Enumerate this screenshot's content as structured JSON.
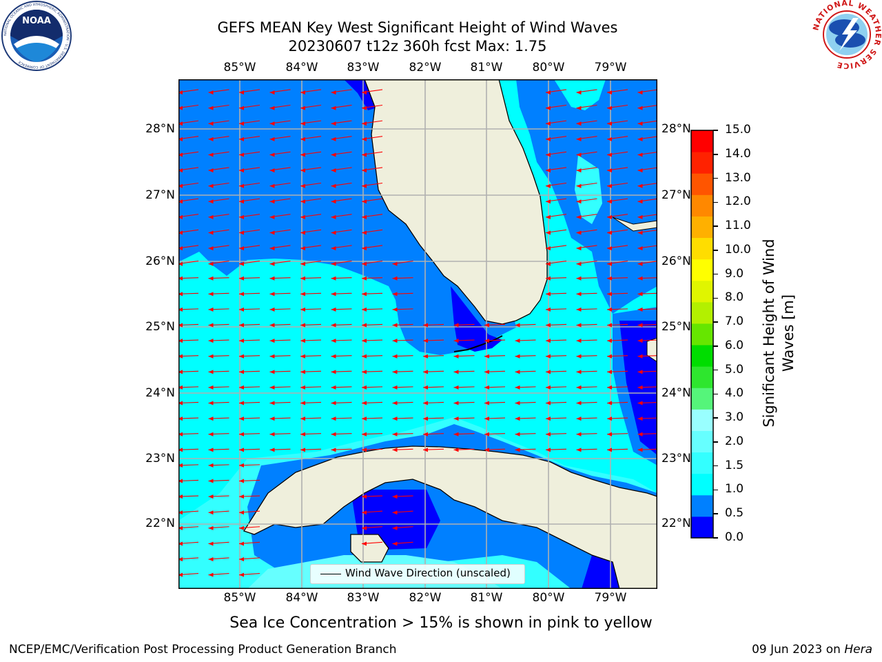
{
  "title": {
    "line1": "GEFS MEAN Key West Significant Height of Wind Waves",
    "line2": "20230607 t12z 360h fcst   Max: 1.75"
  },
  "map": {
    "lon_labels": [
      "85°W",
      "84°W",
      "83°W",
      "82°W",
      "81°W",
      "80°W",
      "79°W"
    ],
    "lat_labels": [
      "28°N",
      "27°N",
      "26°N",
      "25°N",
      "24°N",
      "23°N",
      "22°N"
    ],
    "extent": {
      "lon_min": -86.0,
      "lon_max": -78.25,
      "lat_min": 21.0,
      "lat_max": 28.75
    },
    "land_color": "#efefdc",
    "arrow_color": "#ff0000",
    "grid_color": "#b0b0b0"
  },
  "legend": {
    "label": "Wind Wave Direction (unscaled)"
  },
  "colorbar": {
    "title_line1": "Significant Height of Wind",
    "title_line2": "Waves [m]",
    "ticks": [
      "0.0",
      "0.5",
      "1.0",
      "1.5",
      "2.0",
      "3.0",
      "4.0",
      "5.0",
      "6.0",
      "7.0",
      "8.0",
      "9.0",
      "10.0",
      "11.0",
      "12.0",
      "13.0",
      "14.0",
      "15.0"
    ],
    "colors": [
      "#0000ff",
      "#0080ff",
      "#00ffff",
      "#33ffff",
      "#66ffff",
      "#99ffff",
      "#55f57a",
      "#2ee62e",
      "#00dd00",
      "#66e600",
      "#b3f000",
      "#e0f500",
      "#ffff00",
      "#ffdd00",
      "#ffb000",
      "#ff8800",
      "#ff5500",
      "#ff2200",
      "#ff0000"
    ]
  },
  "caption": "Sea Ice Concentration > 15% is shown in pink to yellow",
  "footer": {
    "left": "NCEP/EMC/Verification Post Processing Product Generation Branch",
    "date": "09 Jun 2023",
    "on": "on",
    "host": "Hera"
  },
  "logos": {
    "noaa_text": "NOAA",
    "noaa_ring": "NATIONAL OCEANIC AND ATMOSPHERIC ADMINISTRATION · U.S. DEPARTMENT OF COMMERCE",
    "nws_ring": "NATIONAL WEATHER SERVICE"
  }
}
